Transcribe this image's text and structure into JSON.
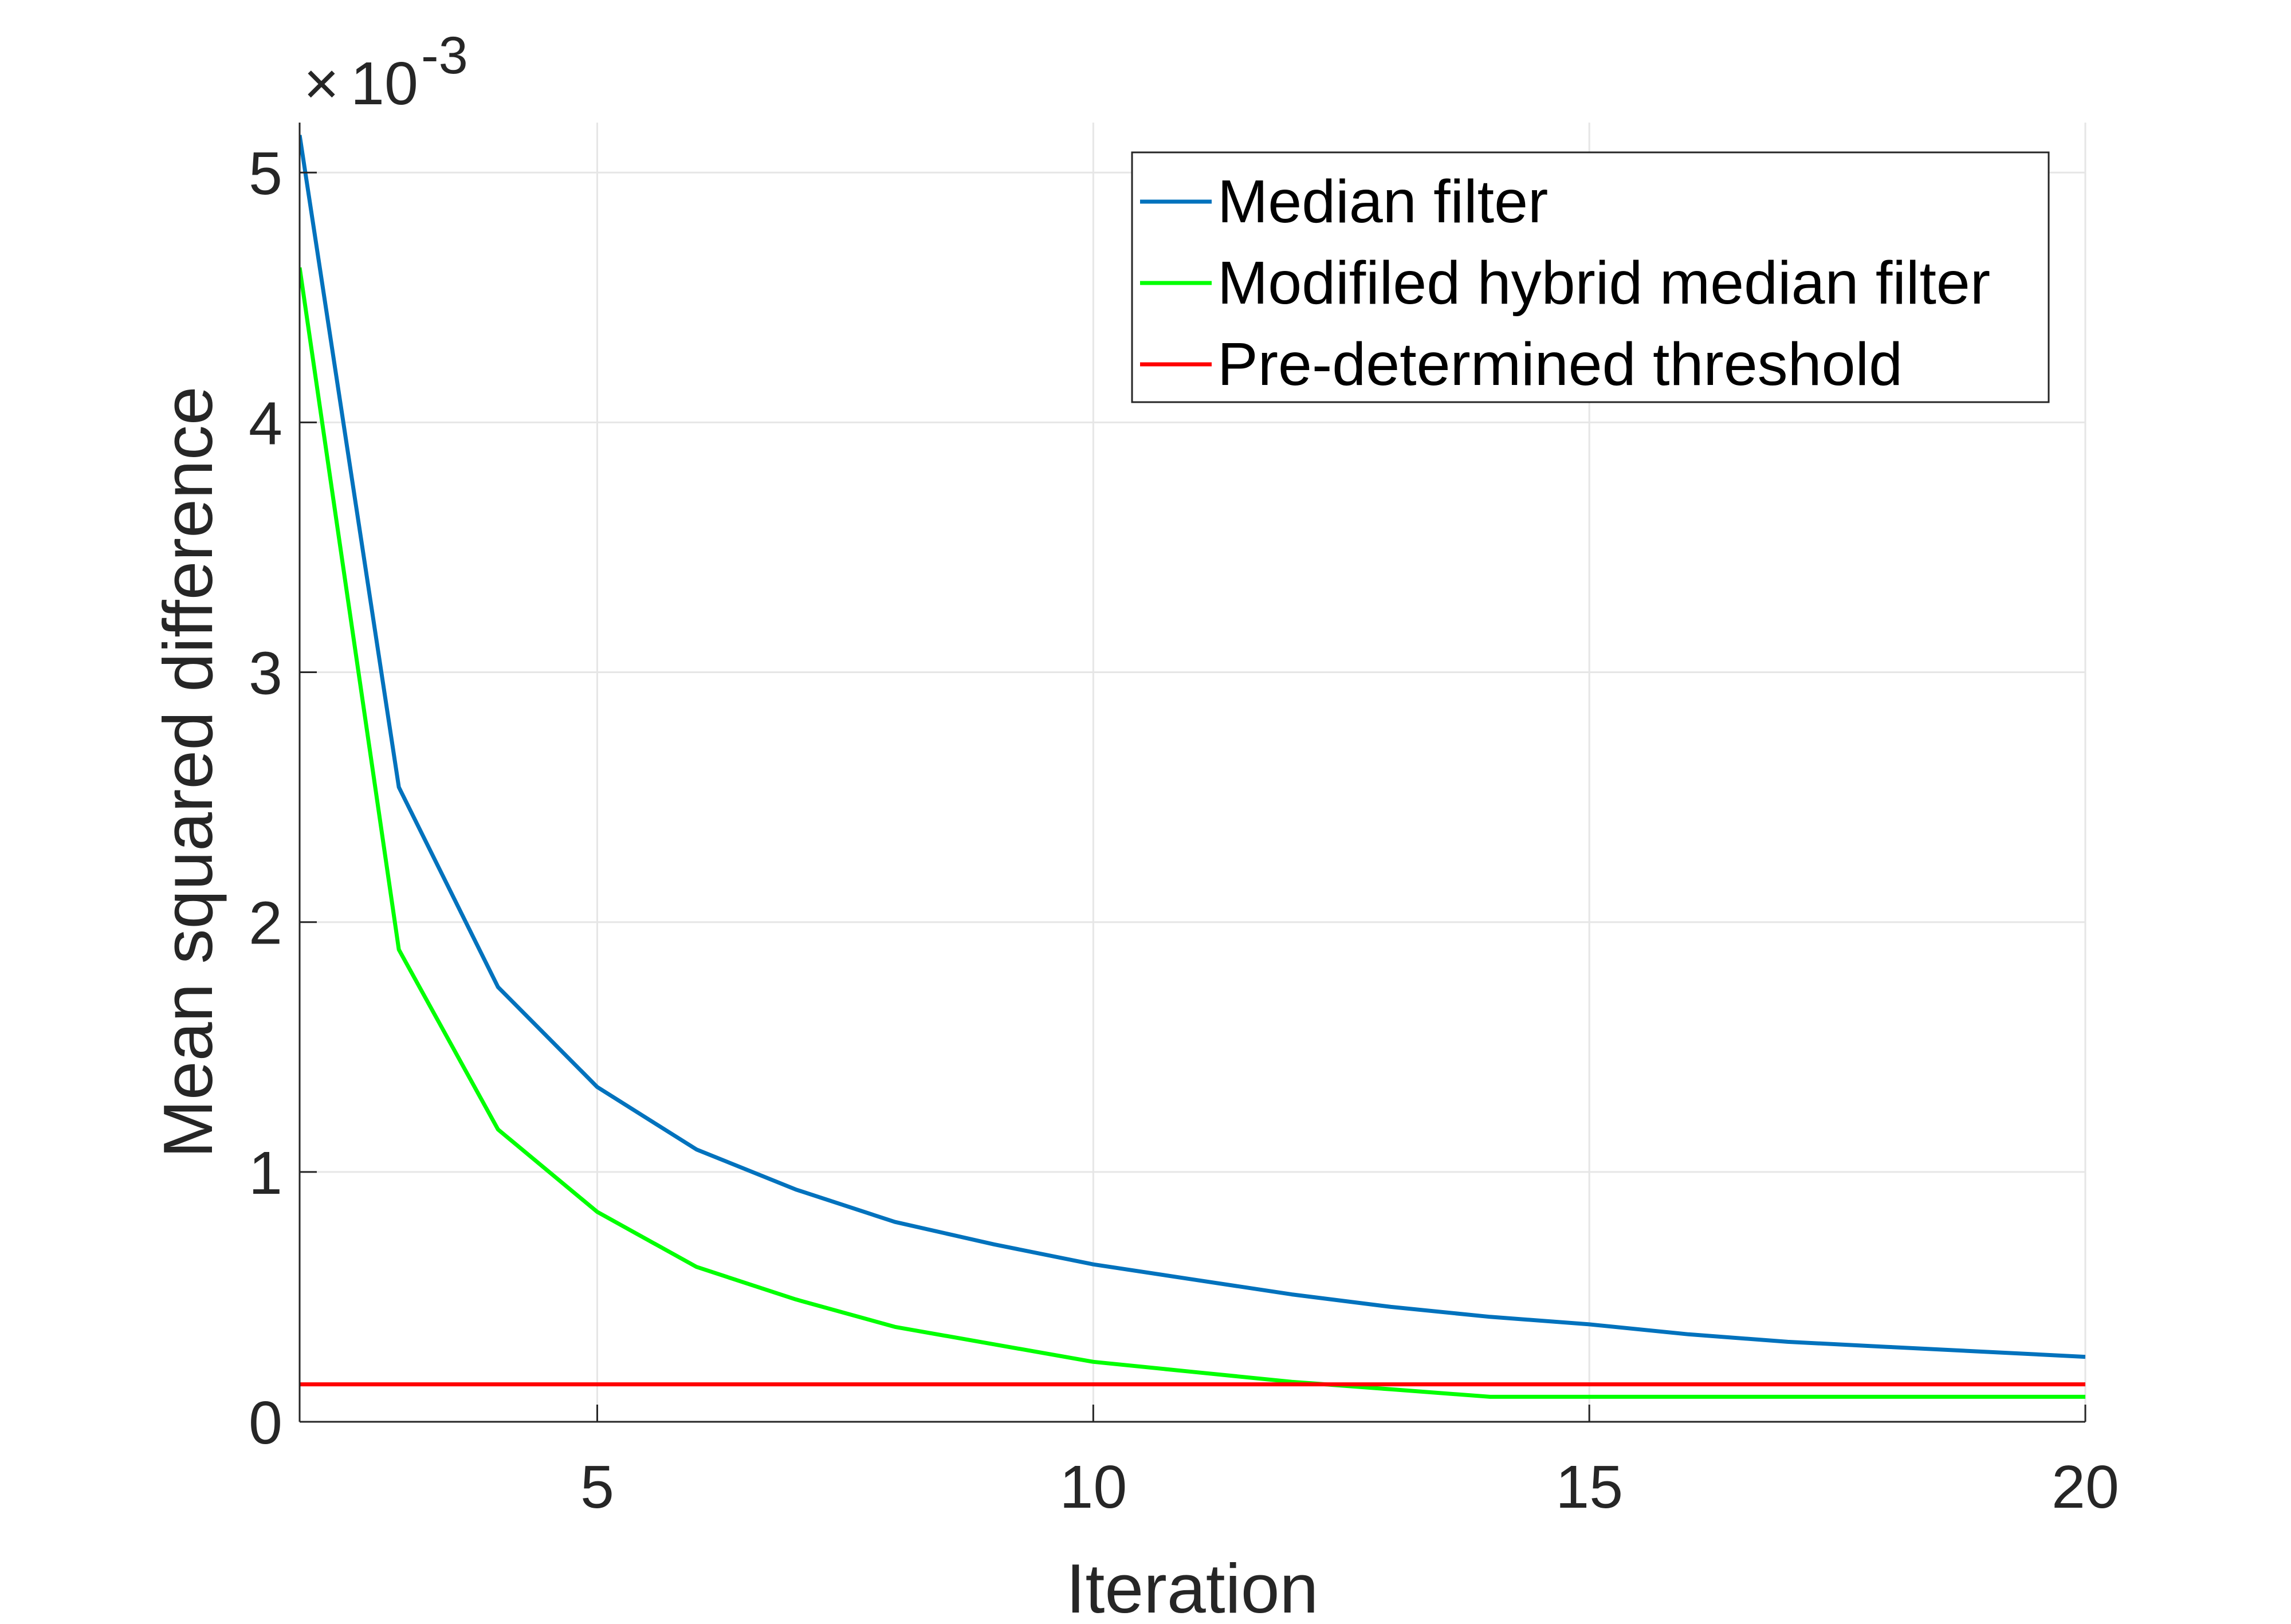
{
  "chart_data": {
    "type": "line",
    "title": "",
    "xlabel": "Iteration",
    "ylabel": "Mean squared difference",
    "y_exponent_label": {
      "base": "10",
      "exponent": "-3"
    },
    "xlim": [
      2,
      20
    ],
    "ylim": [
      0,
      5.2
    ],
    "x_ticks": [
      5,
      10,
      15,
      20
    ],
    "x_tick_labels": [
      "5",
      "10",
      "15",
      "20"
    ],
    "y_ticks": [
      0,
      1,
      2,
      3,
      4,
      5
    ],
    "y_tick_labels": [
      "0",
      "1",
      "2",
      "3",
      "4",
      "5"
    ],
    "grid": true,
    "legend_position": "top-right",
    "x": [
      2,
      3,
      4,
      5,
      6,
      7,
      8,
      9,
      10,
      11,
      12,
      13,
      14,
      15,
      16,
      17,
      18,
      19,
      20
    ],
    "series": [
      {
        "name": "Median filter",
        "color": "#0072BD",
        "values": [
          5.15,
          2.54,
          1.74,
          1.34,
          1.09,
          0.93,
          0.8,
          0.71,
          0.63,
          0.57,
          0.51,
          0.46,
          0.42,
          0.39,
          0.35,
          0.32,
          0.3,
          0.28,
          0.26
        ]
      },
      {
        "name": "Modifiled hybrid median filter",
        "color": "#00FF00",
        "values": [
          4.62,
          1.89,
          1.17,
          0.84,
          0.62,
          0.49,
          0.38,
          0.31,
          0.24,
          0.2,
          0.16,
          0.13,
          0.1,
          0.1,
          0.1,
          0.1,
          0.1,
          0.1,
          0.1
        ]
      },
      {
        "name": "Pre-determined threshold",
        "color": "#FF0000",
        "values": [
          0.15,
          0.15,
          0.15,
          0.15,
          0.15,
          0.15,
          0.15,
          0.15,
          0.15,
          0.15,
          0.15,
          0.15,
          0.15,
          0.15,
          0.15,
          0.15,
          0.15,
          0.15,
          0.15
        ]
      }
    ]
  }
}
